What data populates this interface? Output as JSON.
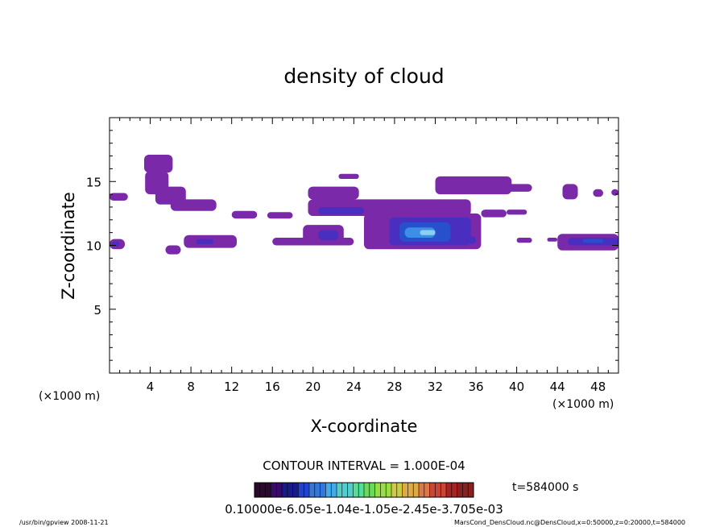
{
  "chart_data": {
    "type": "heatmap",
    "title": "density of cloud",
    "xlabel": "X-coordinate",
    "ylabel": "Z-coordinate",
    "x_unit_left": "(×1000 m)",
    "x_unit_right": "(×1000 m)",
    "xlim": [
      0,
      50
    ],
    "ylim": [
      0,
      20
    ],
    "xticks": [
      4,
      8,
      12,
      16,
      20,
      24,
      28,
      32,
      36,
      40,
      44,
      48
    ],
    "yticks": [
      5,
      10,
      15
    ],
    "contour_interval": "CONTOUR INTERVAL = 1.000E-04",
    "time_label": "t=584000 s",
    "colorbar": {
      "label_text": "0.10000e-6.05e-1.04e-1.05e-2.45e-3.705e-03",
      "colors": [
        "#2a0a2a",
        "#3a0a6a",
        "#1a1a8a",
        "#2244cc",
        "#3377dd",
        "#44aaee",
        "#55cccc",
        "#55dd99",
        "#66dd55",
        "#99dd44",
        "#cccc44",
        "#ddaa44",
        "#dd7744",
        "#cc4433",
        "#aa2222",
        "#882222"
      ]
    },
    "regions": [
      {
        "x": [
          3.4,
          6.2
        ],
        "z": [
          15.7,
          17.1
        ],
        "level": 1
      },
      {
        "x": [
          3.5,
          5.8
        ],
        "z": [
          14.0,
          15.8
        ],
        "level": 1
      },
      {
        "x": [
          4.5,
          7.5
        ],
        "z": [
          13.2,
          14.6
        ],
        "level": 1
      },
      {
        "x": [
          6.0,
          10.5
        ],
        "z": [
          12.7,
          13.6
        ],
        "level": 1
      },
      {
        "x": [
          0.0,
          1.8
        ],
        "z": [
          13.5,
          14.1
        ],
        "level": 1
      },
      {
        "x": [
          12.0,
          14.5
        ],
        "z": [
          12.1,
          12.7
        ],
        "level": 1
      },
      {
        "x": [
          15.5,
          18.0
        ],
        "z": [
          12.1,
          12.6
        ],
        "level": 1
      },
      {
        "x": [
          0.0,
          1.5
        ],
        "z": [
          9.7,
          10.5
        ],
        "level": 1
      },
      {
        "x": [
          0.2,
          1.0
        ],
        "z": [
          9.9,
          10.3
        ],
        "level": 2
      },
      {
        "x": [
          5.5,
          7.0
        ],
        "z": [
          9.3,
          10.0
        ],
        "level": 1
      },
      {
        "x": [
          7.3,
          12.5
        ],
        "z": [
          9.8,
          10.8
        ],
        "level": 1
      },
      {
        "x": [
          8.5,
          10.2
        ],
        "z": [
          10.1,
          10.5
        ],
        "level": 2
      },
      {
        "x": [
          19.5,
          24.5
        ],
        "z": [
          13.6,
          14.6
        ],
        "level": 1
      },
      {
        "x": [
          22.5,
          24.5
        ],
        "z": [
          15.2,
          15.6
        ],
        "level": 1
      },
      {
        "x": [
          19.5,
          35.5
        ],
        "z": [
          12.3,
          13.6
        ],
        "level": 1
      },
      {
        "x": [
          20.5,
          25.0
        ],
        "z": [
          12.4,
          13.0
        ],
        "level": 2
      },
      {
        "x": [
          16.0,
          24.0
        ],
        "z": [
          10.0,
          10.6
        ],
        "level": 1
      },
      {
        "x": [
          19.0,
          23.0
        ],
        "z": [
          10.2,
          11.6
        ],
        "level": 1
      },
      {
        "x": [
          20.5,
          22.5
        ],
        "z": [
          10.4,
          11.2
        ],
        "level": 2
      },
      {
        "x": [
          25.0,
          36.5
        ],
        "z": [
          9.7,
          12.5
        ],
        "level": 1
      },
      {
        "x": [
          27.5,
          35.5
        ],
        "z": [
          10.0,
          12.2
        ],
        "level": 2
      },
      {
        "x": [
          28.5,
          33.5
        ],
        "z": [
          10.3,
          11.8
        ],
        "level": 3
      },
      {
        "x": [
          29.0,
          32.0
        ],
        "z": [
          10.6,
          11.4
        ],
        "level": 4
      },
      {
        "x": [
          30.5,
          32.0
        ],
        "z": [
          10.8,
          11.2
        ],
        "level": 5
      },
      {
        "x": [
          34.0,
          36.0
        ],
        "z": [
          10.1,
          10.7
        ],
        "level": 2
      },
      {
        "x": [
          32.0,
          39.5
        ],
        "z": [
          14.0,
          15.4
        ],
        "level": 1
      },
      {
        "x": [
          37.0,
          41.5
        ],
        "z": [
          14.2,
          14.8
        ],
        "level": 1
      },
      {
        "x": [
          36.5,
          39.0
        ],
        "z": [
          12.2,
          12.8
        ],
        "level": 1
      },
      {
        "x": [
          39.0,
          41.0
        ],
        "z": [
          12.4,
          12.8
        ],
        "level": 1
      },
      {
        "x": [
          44.5,
          46.0
        ],
        "z": [
          13.6,
          14.8
        ],
        "level": 1
      },
      {
        "x": [
          47.5,
          48.5
        ],
        "z": [
          13.8,
          14.4
        ],
        "level": 1
      },
      {
        "x": [
          49.3,
          50.0
        ],
        "z": [
          13.9,
          14.4
        ],
        "level": 1
      },
      {
        "x": [
          44.0,
          50.0
        ],
        "z": [
          9.6,
          10.9
        ],
        "level": 1
      },
      {
        "x": [
          45.0,
          50.0
        ],
        "z": [
          10.0,
          10.6
        ],
        "level": 2
      },
      {
        "x": [
          46.5,
          48.5
        ],
        "z": [
          10.2,
          10.5
        ],
        "level": 3
      },
      {
        "x": [
          40.0,
          41.5
        ],
        "z": [
          10.2,
          10.6
        ],
        "level": 1
      },
      {
        "x": [
          43.0,
          44.0
        ],
        "z": [
          10.3,
          10.6
        ],
        "level": 1
      }
    ]
  },
  "footer": {
    "left": "/usr/bin/gpview   2008-11-21",
    "right": "MarsCond_DensCloud.nc@DensCloud,x=0:50000,z=0:20000,t=584000"
  },
  "colors": {
    "level1": "#7a2aa8",
    "level2": "#4a2ec0",
    "level3": "#2850cc",
    "level4": "#3c8ee6",
    "level5": "#8cd0f0"
  }
}
